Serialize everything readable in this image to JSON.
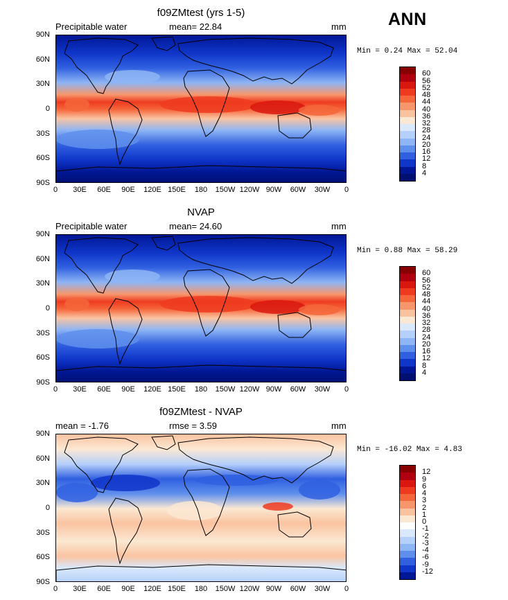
{
  "season": "ANN",
  "panels": [
    {
      "title": "f09ZMtest (yrs 1-5)",
      "left_label": "Precipitable water",
      "center_label": "mean=  22.84",
      "units": "mm",
      "minmax": "Min =   0.24 Max =  52.04",
      "colorbar_labels": [
        "60",
        "56",
        "52",
        "48",
        "44",
        "40",
        "36",
        "32",
        "28",
        "24",
        "20",
        "16",
        "12",
        "8",
        "4"
      ]
    },
    {
      "title": "NVAP",
      "left_label": "Precipitable water",
      "center_label": "mean=  24.60",
      "units": "mm",
      "minmax": "Min =   0.88 Max =  58.29",
      "colorbar_labels": [
        "60",
        "56",
        "52",
        "48",
        "44",
        "40",
        "36",
        "32",
        "28",
        "24",
        "20",
        "16",
        "12",
        "8",
        "4"
      ]
    },
    {
      "title": "f09ZMtest - NVAP",
      "left_label": "mean =  -1.76",
      "center_label": "rmse =   3.59",
      "units": "mm",
      "minmax": "Min = -16.02 Max =   4.83",
      "colorbar_labels": [
        "12",
        "9",
        "6",
        "4",
        "3",
        "2",
        "1",
        "0",
        "-1",
        "-2",
        "-3",
        "-4",
        "-6",
        "-9",
        "-12"
      ]
    }
  ],
  "lat_ticks": [
    "90N",
    "60N",
    "30N",
    "0",
    "30S",
    "60S",
    "90S"
  ],
  "lon_ticks": [
    "0",
    "30E",
    "60E",
    "90E",
    "120E",
    "150E",
    "180",
    "150W",
    "120W",
    "90W",
    "60W",
    "30W",
    "0"
  ],
  "colors": {
    "abs_scale": [
      "#880000",
      "#b0000f",
      "#d9170f",
      "#ee3b20",
      "#f5663a",
      "#f8966b",
      "#fac3a0",
      "#fbe8d3",
      "#d9e8fb",
      "#b5d0fa",
      "#8eb5f4",
      "#5f8fec",
      "#3060e0",
      "#0f35c9",
      "#001795",
      "#000f70"
    ],
    "diff_scale": [
      "#880000",
      "#b0000f",
      "#d9170f",
      "#ee3b20",
      "#f5663a",
      "#f8966b",
      "#fac3a0",
      "#fbe8d3",
      "#ffffff",
      "#d9e8fb",
      "#b5d0fa",
      "#8eb5f4",
      "#5f8fec",
      "#3060e0",
      "#0f35c9",
      "#001795"
    ]
  }
}
